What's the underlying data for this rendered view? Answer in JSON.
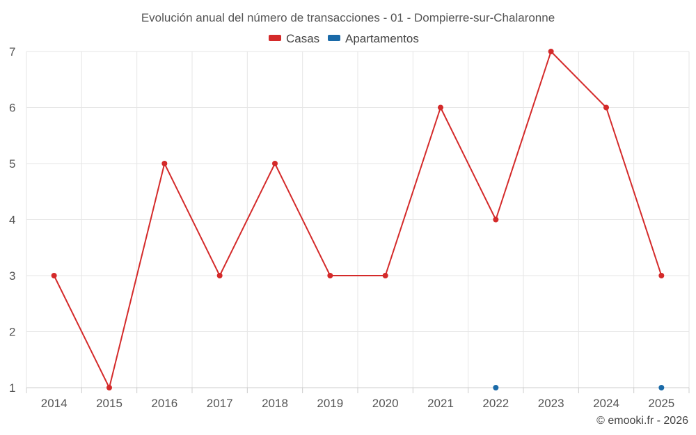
{
  "chart_data": {
    "type": "line",
    "title": "Evolución anual del número de transacciones - 01 - Dompierre-sur-Chalaronne",
    "categories": [
      "2014",
      "2015",
      "2016",
      "2017",
      "2018",
      "2019",
      "2020",
      "2021",
      "2022",
      "2023",
      "2024",
      "2025"
    ],
    "series": [
      {
        "name": "Casas",
        "color": "#d42a2a",
        "values": [
          3,
          1,
          5,
          3,
          5,
          3,
          3,
          6,
          4,
          7,
          6,
          3
        ]
      },
      {
        "name": "Apartamentos",
        "color": "#1a6aa8",
        "values": [
          null,
          null,
          null,
          null,
          null,
          null,
          null,
          null,
          1,
          null,
          null,
          1
        ]
      }
    ],
    "yticks": [
      "1",
      "2",
      "3",
      "4",
      "5",
      "6",
      "7"
    ],
    "ylim": [
      1,
      7
    ],
    "grid": true,
    "legend_position": "top-center",
    "credit": "© emooki.fr - 2026"
  }
}
